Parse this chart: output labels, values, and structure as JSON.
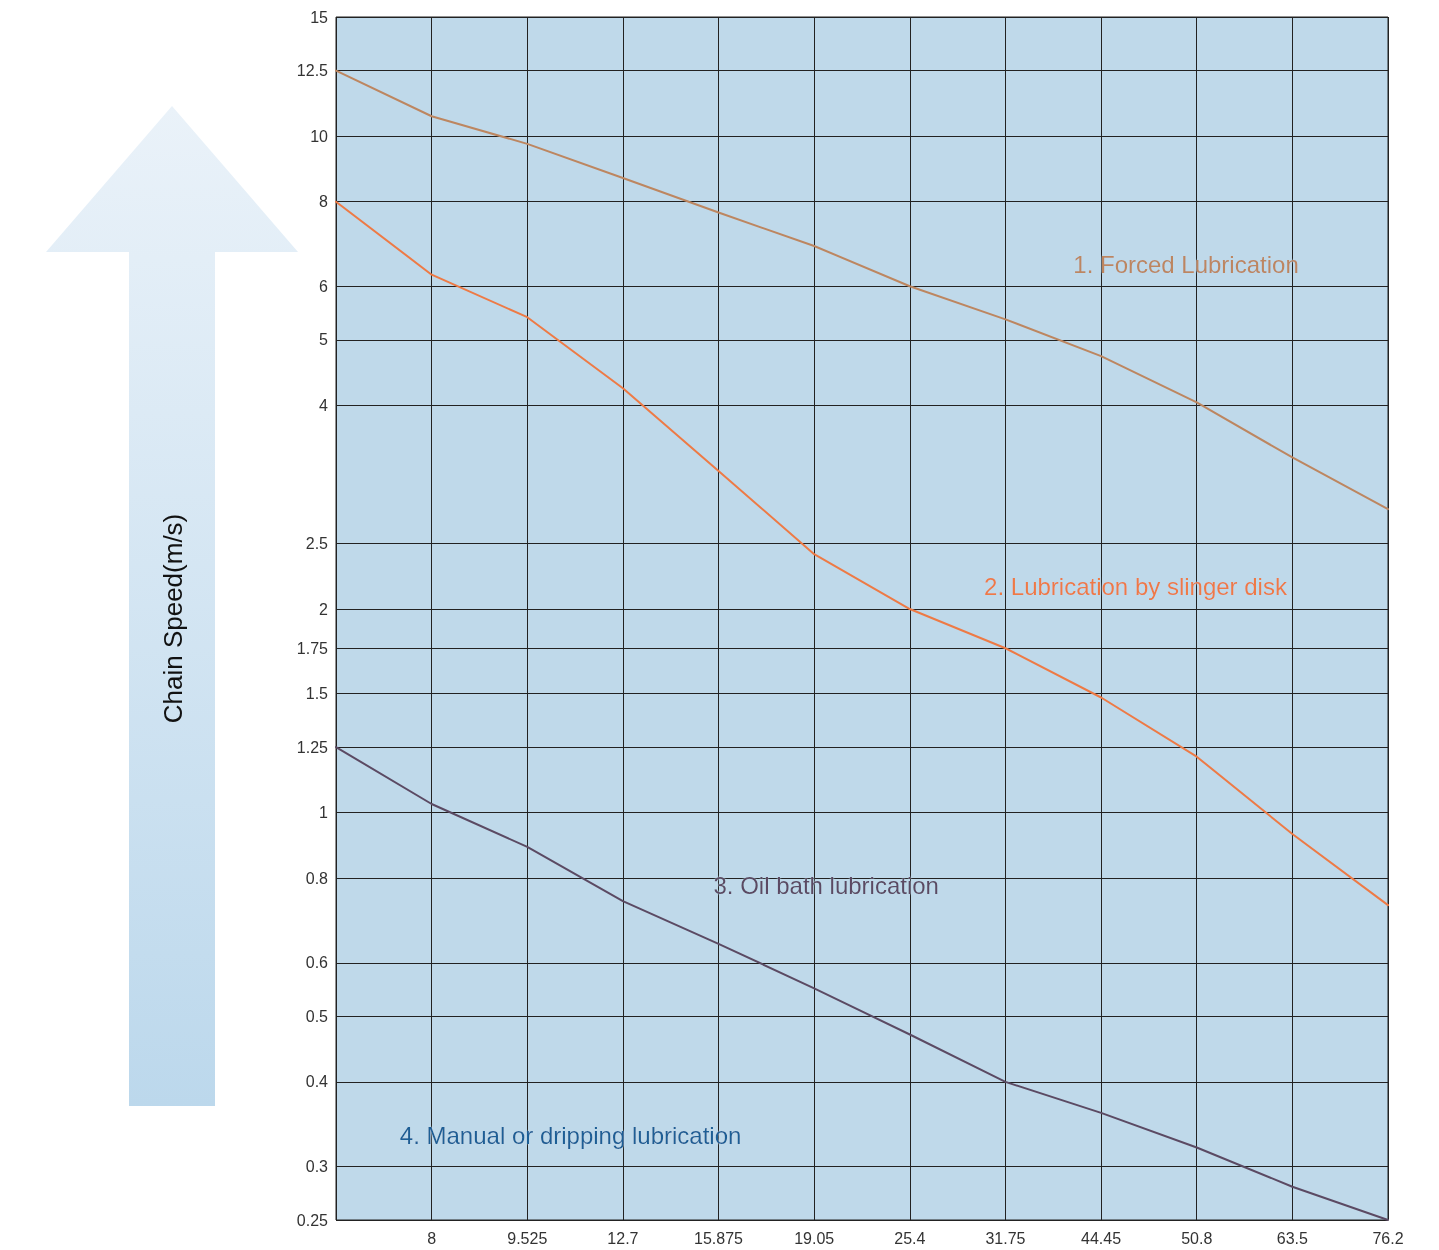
{
  "chart_data": {
    "type": "line",
    "ylabel": "Chain Speed(m/s)",
    "categories": [
      null,
      "8",
      "9.525",
      "12.7",
      "15.875",
      "19.05",
      "25.4",
      "31.75",
      "44.45",
      "50.8",
      "63.5",
      "76.2"
    ],
    "series": [
      {
        "color": "#bd8660",
        "values": [
          12.5,
          10.7,
          9.74,
          8.67,
          7.71,
          6.88,
          6.0,
          5.36,
          4.73,
          4.04,
          3.35,
          2.81
        ]
      },
      {
        "color": "#ee7a45",
        "values": [
          8,
          6.24,
          5.4,
          4.24,
          3.2,
          2.41,
          2.0,
          1.75,
          1.48,
          1.21,
          0.93,
          0.73
        ]
      },
      {
        "color": "#5b4a63",
        "values": [
          1.25,
          1.03,
          0.89,
          0.74,
          0.64,
          0.55,
          0.47,
          0.4,
          0.36,
          0.32,
          0.28,
          0.25
        ]
      }
    ],
    "ylim": [
      0.25,
      15
    ],
    "yticks": [
      0.25,
      0.3,
      0.4,
      0.5,
      0.6,
      0.8,
      1,
      1.25,
      1.5,
      1.75,
      2,
      2.5,
      4,
      5,
      6,
      8,
      10,
      12.5,
      15
    ],
    "log": true,
    "grid": true,
    "marker": "none",
    "line_style": "solid",
    "annotations": [
      "1. Forced Lubrication",
      "2. Lubrication by slinger disk",
      "3. Oil bath lubrication",
      "4. Manual or dripping lubrication"
    ]
  }
}
